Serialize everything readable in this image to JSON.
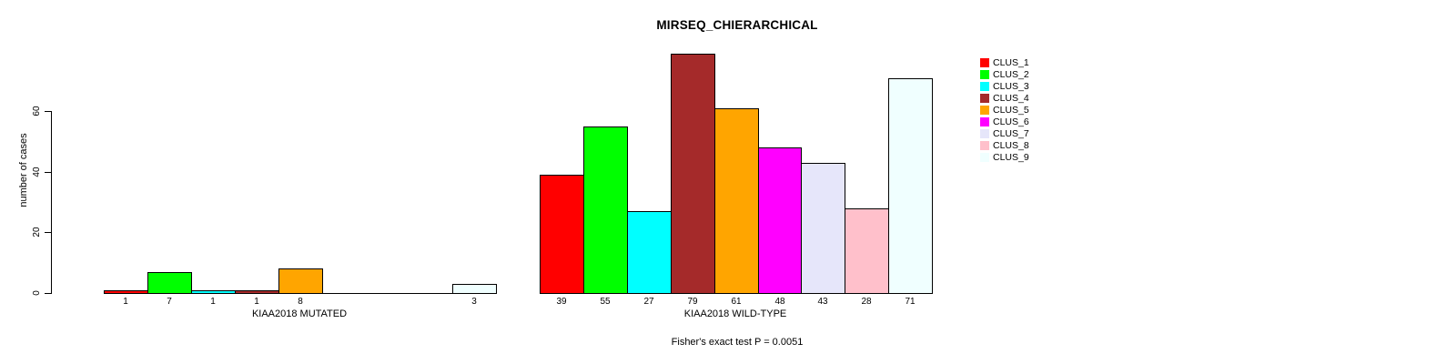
{
  "chart_data": {
    "type": "bar",
    "title": "MIRSEQ_CHIERARCHICAL",
    "subtitle": "Fisher's exact test P = 0.0051",
    "ylabel": "number of cases",
    "yticks": [
      0,
      20,
      40,
      60
    ],
    "ylim": [
      0,
      79
    ],
    "grid": false,
    "legend_position": "right",
    "bar_border_color": "#000000",
    "clusters": [
      {
        "label": "CLUS_1",
        "color": "#FF0000"
      },
      {
        "label": "CLUS_2",
        "color": "#00FF00"
      },
      {
        "label": "CLUS_3",
        "color": "#00FFFF"
      },
      {
        "label": "CLUS_4",
        "color": "#A52A2A"
      },
      {
        "label": "CLUS_5",
        "color": "#FFA500"
      },
      {
        "label": "CLUS_6",
        "color": "#FF00FF"
      },
      {
        "label": "CLUS_7",
        "color": "#E6E6FA"
      },
      {
        "label": "CLUS_8",
        "color": "#FFC0CB"
      },
      {
        "label": "CLUS_9",
        "color": "#F0FFFF"
      }
    ],
    "groups": [
      {
        "label": "KIAA2018 MUTATED",
        "values": [
          1,
          7,
          1,
          1,
          8,
          0,
          0,
          0,
          3
        ]
      },
      {
        "label": "KIAA2018 WILD-TYPE",
        "values": [
          39,
          55,
          27,
          79,
          61,
          48,
          43,
          28,
          71
        ]
      }
    ]
  }
}
